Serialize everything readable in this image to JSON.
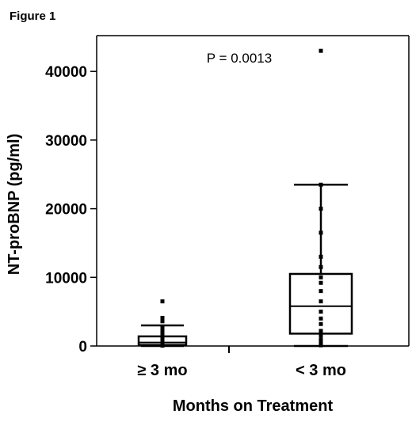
{
  "figure_label": "Figure 1",
  "chart_data": {
    "type": "box",
    "ylabel": "NT-proBNP (pg/ml)",
    "xlabel": "Months on Treatment",
    "ylim": [
      0,
      45000
    ],
    "yticks": [
      0,
      10000,
      20000,
      30000,
      40000
    ],
    "ytick_labels": [
      "0",
      "10000",
      "20000",
      "30000",
      "40000"
    ],
    "annotation": "P = 0.0013",
    "grid": false,
    "categories": [
      "≥ 3 mo",
      "< 3 mo"
    ],
    "groups": [
      {
        "category": "≥ 3 mo",
        "whisker_low": 0,
        "q1": 150,
        "median": 500,
        "q3": 1400,
        "whisker_high": 3000,
        "points": [
          6500,
          4100,
          3600,
          2800,
          2300,
          1900,
          1500,
          1200,
          1000,
          800,
          600,
          450,
          300,
          200,
          100,
          50
        ]
      },
      {
        "category": "< 3 mo",
        "whisker_low": 0,
        "q1": 1800,
        "median": 5800,
        "q3": 10500,
        "whisker_high": 23500,
        "points": [
          43000,
          23500,
          20000,
          16500,
          13000,
          11500,
          10000,
          9200,
          8000,
          6500,
          5000,
          4000,
          3200,
          2200,
          1500,
          900,
          400,
          100
        ]
      }
    ]
  }
}
